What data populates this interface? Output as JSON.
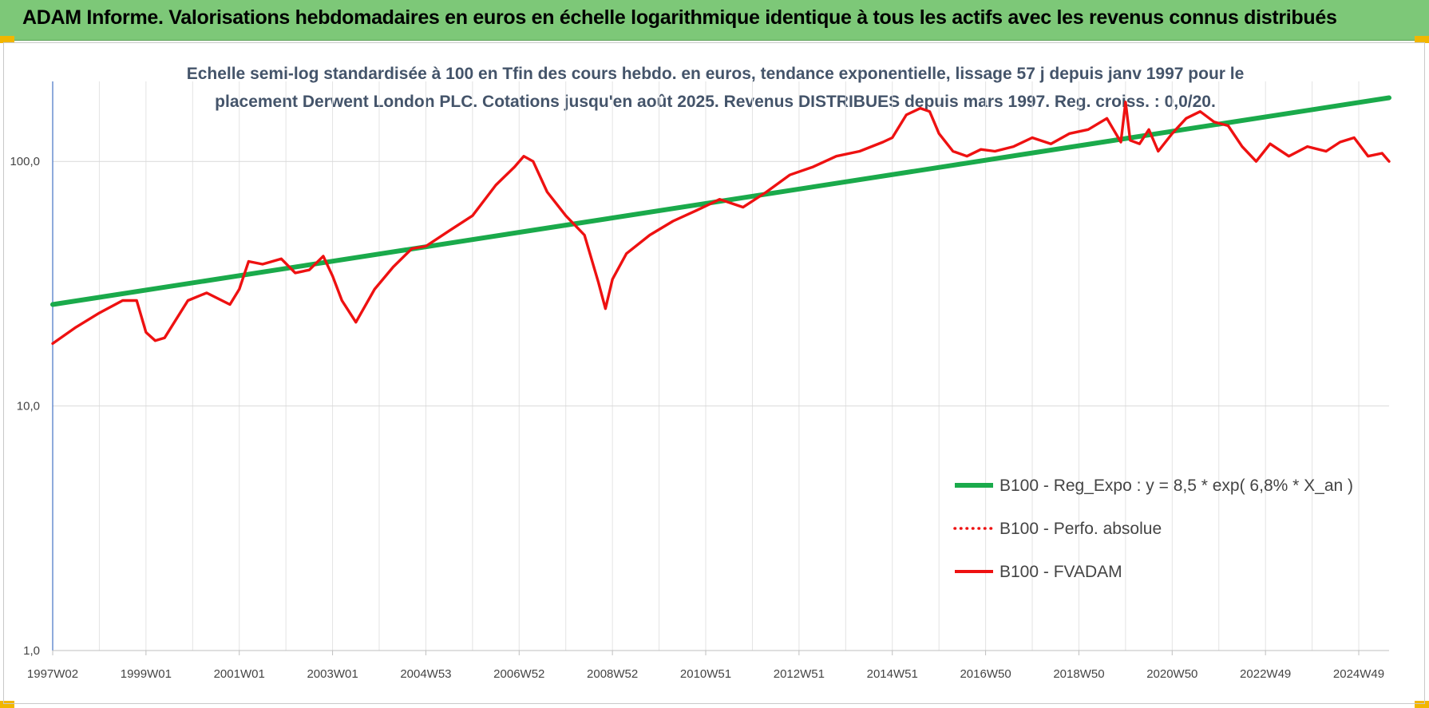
{
  "header": {
    "title": "ADAM Informe. Valorisations hebdomadaires en euros en échelle logarithmique identique à tous les actifs avec les revenus connus distribués"
  },
  "colors": {
    "banner": "#7dc878",
    "regression": "#1aaa4b",
    "fvadam": "#ee1111",
    "perfo": "#ee1111",
    "accent": "#f2b600"
  },
  "chart_data": {
    "type": "line",
    "title_line1": "Echelle semi-log standardisée à 100 en Tfin des cours hebdo. en euros, tendance exponentielle, lissage 57 j depuis janv 1997 pour le",
    "title_line2": "placement Derwent London PLC. Cotations jusqu'en août 2025. Revenus DISTRIBUES depuis mars 1997. Reg. croiss. : 0,0/20.",
    "y_scale": "log",
    "ylim": [
      1,
      200
    ],
    "y_ticks": [
      {
        "value": 100,
        "label": "100,0"
      },
      {
        "value": 10,
        "label": "10,0"
      },
      {
        "value": 1,
        "label": "1,0"
      }
    ],
    "xlim": [
      1997.0,
      2025.65
    ],
    "x_ticks": [
      {
        "value": 1997.0,
        "label": "1997W02"
      },
      {
        "value": 1999.0,
        "label": "1999W01"
      },
      {
        "value": 2001.0,
        "label": "2001W01"
      },
      {
        "value": 2003.0,
        "label": "2003W01"
      },
      {
        "value": 2005.0,
        "label": "2004W53"
      },
      {
        "value": 2007.0,
        "label": "2006W52"
      },
      {
        "value": 2009.0,
        "label": "2008W52"
      },
      {
        "value": 2011.0,
        "label": "2010W51"
      },
      {
        "value": 2013.0,
        "label": "2012W51"
      },
      {
        "value": 2015.0,
        "label": "2014W51"
      },
      {
        "value": 2017.0,
        "label": "2016W50"
      },
      {
        "value": 2019.0,
        "label": "2018W50"
      },
      {
        "value": 2021.0,
        "label": "2020W50"
      },
      {
        "value": 2023.0,
        "label": "2022W49"
      },
      {
        "value": 2025.0,
        "label": "2024W49"
      }
    ],
    "grid": true,
    "legend_position": "bottom-right",
    "series": [
      {
        "name": "B100 - Reg_Expo : y = 8,5 * exp( 6,8% *  X_an )",
        "key": "regression",
        "style": "solid-thick",
        "x": [
          1997.0,
          2025.65
        ],
        "y": [
          26,
          182
        ]
      },
      {
        "name": "B100 - Perfo. absolue",
        "key": "perfo",
        "style": "dotted",
        "x": [],
        "y": []
      },
      {
        "name": "B100 - FVADAM",
        "key": "fvadam",
        "style": "solid",
        "x": [
          1997.0,
          1997.5,
          1998.0,
          1998.5,
          1998.8,
          1999.0,
          1999.2,
          1999.4,
          1999.9,
          2000.3,
          2000.8,
          2001.0,
          2001.2,
          2001.5,
          2001.9,
          2002.2,
          2002.5,
          2002.8,
          2003.0,
          2003.2,
          2003.5,
          2003.9,
          2004.3,
          2004.7,
          2005.0,
          2005.5,
          2006.0,
          2006.5,
          2006.9,
          2007.1,
          2007.3,
          2007.6,
          2008.0,
          2008.4,
          2008.7,
          2008.85,
          2009.0,
          2009.3,
          2009.8,
          2010.3,
          2010.8,
          2011.3,
          2011.8,
          2012.3,
          2012.8,
          2013.3,
          2013.8,
          2014.3,
          2014.8,
          2015.0,
          2015.3,
          2015.6,
          2015.8,
          2016.0,
          2016.3,
          2016.6,
          2016.9,
          2017.2,
          2017.6,
          2018.0,
          2018.4,
          2018.8,
          2019.2,
          2019.6,
          2019.9,
          2020.0,
          2020.1,
          2020.3,
          2020.5,
          2020.7,
          2021.0,
          2021.3,
          2021.6,
          2021.9,
          2022.2,
          2022.5,
          2022.8,
          2023.1,
          2023.5,
          2023.9,
          2024.3,
          2024.6,
          2024.9,
          2025.2,
          2025.5,
          2025.65
        ],
        "y": [
          18,
          21,
          24,
          27,
          27,
          20,
          18.5,
          19,
          27,
          29,
          26,
          30,
          39,
          38,
          40,
          35,
          36,
          41,
          34,
          27,
          22,
          30,
          37,
          44,
          45,
          52,
          60,
          80,
          95,
          105,
          100,
          75,
          60,
          50,
          32,
          25,
          33,
          42,
          50,
          57,
          63,
          70,
          65,
          75,
          88,
          95,
          105,
          110,
          120,
          125,
          155,
          165,
          160,
          130,
          110,
          105,
          112,
          110,
          115,
          125,
          118,
          130,
          135,
          150,
          120,
          175,
          122,
          118,
          135,
          110,
          130,
          150,
          160,
          145,
          140,
          115,
          100,
          118,
          105,
          115,
          110,
          120,
          125,
          105,
          108,
          100
        ]
      }
    ]
  }
}
